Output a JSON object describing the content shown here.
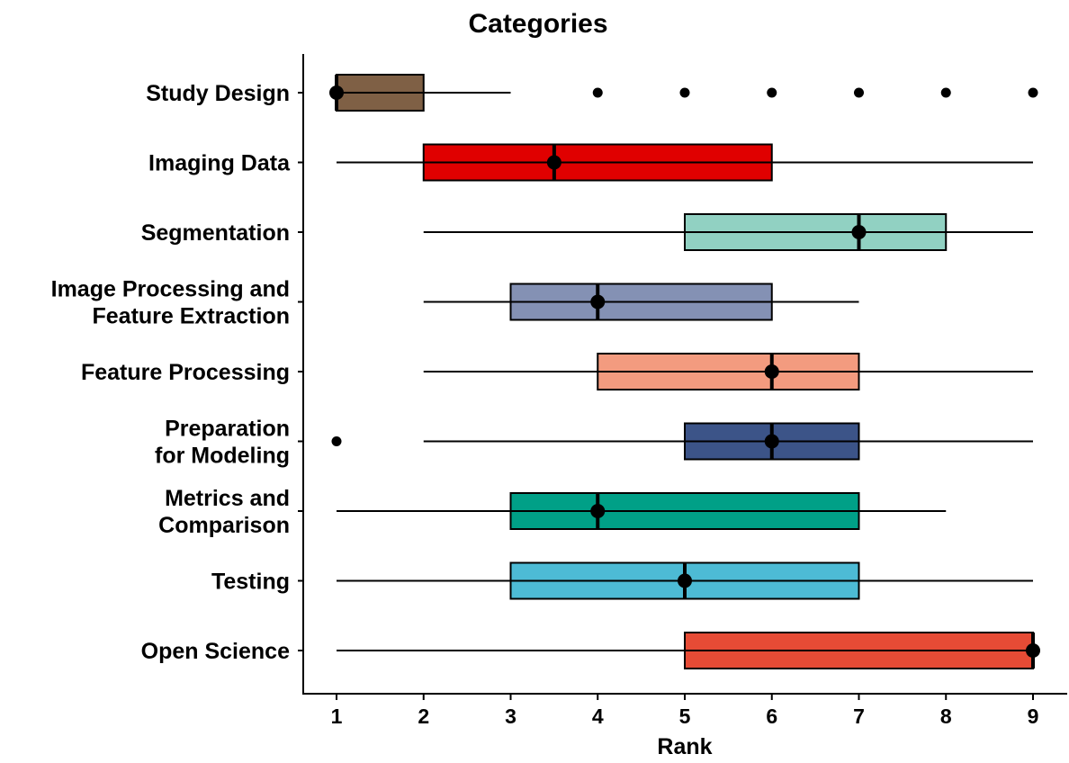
{
  "chart_data": {
    "type": "boxplot",
    "title": "Categories",
    "xlabel": "Rank",
    "ylabel": "",
    "xlim": [
      1,
      9
    ],
    "x_ticks": [
      1,
      2,
      3,
      4,
      5,
      6,
      7,
      8,
      9
    ],
    "grid": false,
    "legend": "none",
    "series": [
      {
        "category": "Study Design",
        "label_lines": [
          "Study Design"
        ],
        "whisker_low": 1,
        "q1": 1,
        "median": 1,
        "q3": 2,
        "whisker_high": 3,
        "mean": 1,
        "outliers": [
          4,
          5,
          6,
          7,
          8,
          9
        ],
        "color": "#7f6045"
      },
      {
        "category": "Imaging Data",
        "label_lines": [
          "Imaging Data"
        ],
        "whisker_low": 1,
        "q1": 2,
        "median": 3.5,
        "q3": 6,
        "whisker_high": 9,
        "mean": 3.5,
        "outliers": [],
        "color": "#e00000"
      },
      {
        "category": "Segmentation",
        "label_lines": [
          "Segmentation"
        ],
        "whisker_low": 2,
        "q1": 5,
        "median": 7,
        "q3": 8,
        "whisker_high": 9,
        "mean": 7,
        "outliers": [],
        "color": "#91d1c2"
      },
      {
        "category": "Image Processing and Feature Extraction",
        "label_lines": [
          "Image Processing and",
          "Feature Extraction"
        ],
        "whisker_low": 2,
        "q1": 3,
        "median": 4,
        "q3": 6,
        "whisker_high": 7,
        "mean": 4,
        "outliers": [],
        "color": "#8491b4"
      },
      {
        "category": "Feature Processing",
        "label_lines": [
          "Feature Processing"
        ],
        "whisker_low": 2,
        "q1": 4,
        "median": 6,
        "q3": 7,
        "whisker_high": 9,
        "mean": 6,
        "outliers": [],
        "color": "#f39b7f"
      },
      {
        "category": "Preparation for Modeling",
        "label_lines": [
          "Preparation",
          "for Modeling"
        ],
        "whisker_low": 2,
        "q1": 5,
        "median": 6,
        "q3": 7,
        "whisker_high": 9,
        "mean": 6,
        "outliers": [
          1
        ],
        "color": "#3c5488"
      },
      {
        "category": "Metrics and Comparison",
        "label_lines": [
          "Metrics and",
          "Comparison"
        ],
        "whisker_low": 1,
        "q1": 3,
        "median": 4,
        "q3": 7,
        "whisker_high": 8,
        "mean": 4,
        "outliers": [],
        "color": "#00a087"
      },
      {
        "category": "Testing",
        "label_lines": [
          "Testing"
        ],
        "whisker_low": 1,
        "q1": 3,
        "median": 5,
        "q3": 7,
        "whisker_high": 9,
        "mean": 5,
        "outliers": [],
        "color": "#4dbbd5"
      },
      {
        "category": "Open Science",
        "label_lines": [
          "Open Science"
        ],
        "whisker_low": 1,
        "q1": 5,
        "median": 9,
        "q3": 9,
        "whisker_high": 9,
        "mean": 9,
        "outliers": [],
        "color": "#e64b35"
      }
    ]
  }
}
